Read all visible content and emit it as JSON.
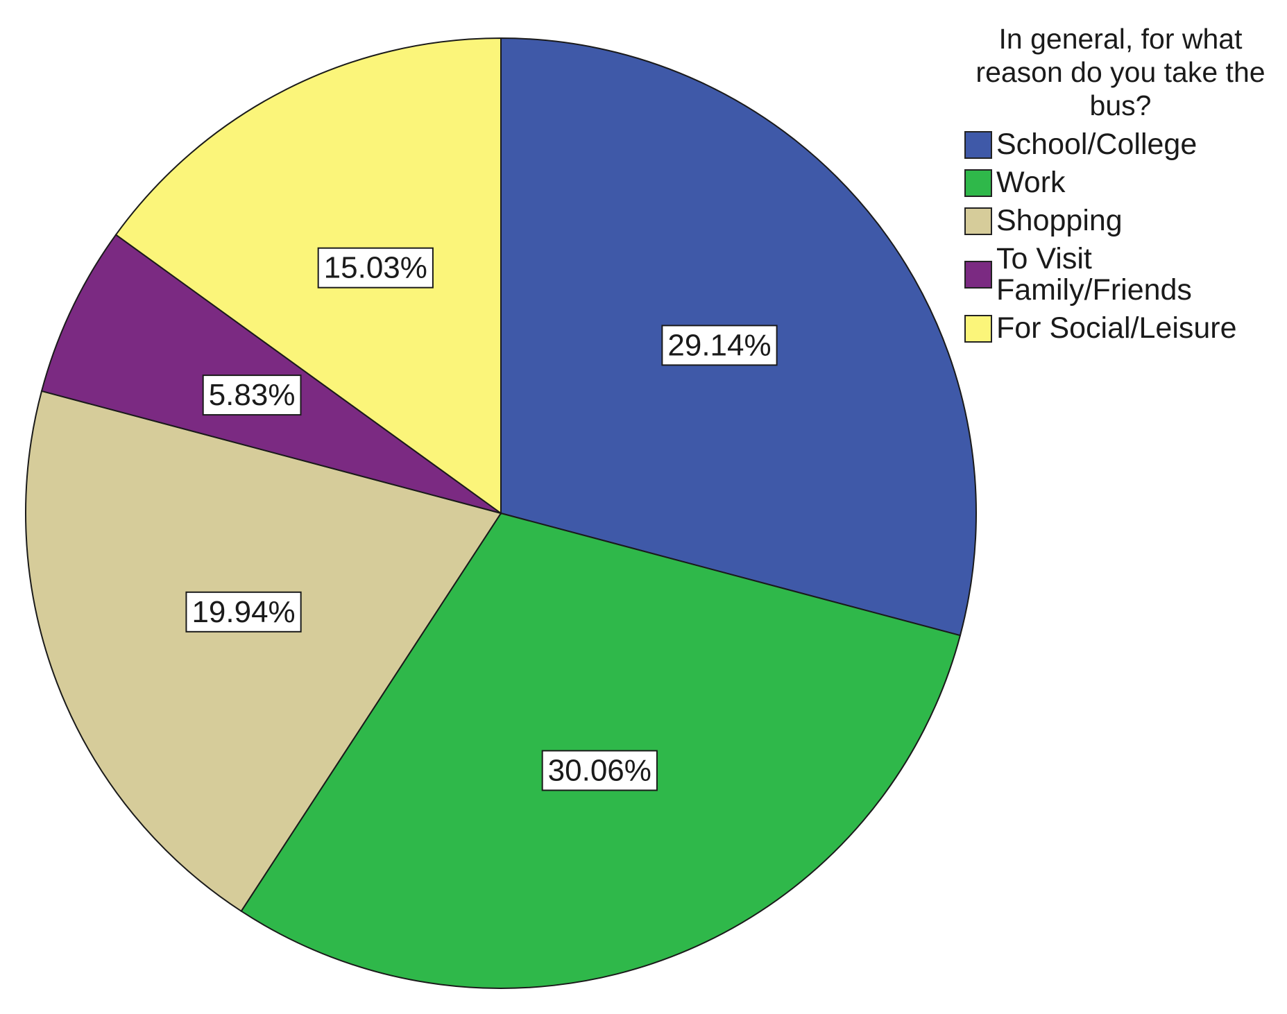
{
  "chart_data": {
    "type": "pie",
    "legend_title": "In general, for what reason do you take the bus?",
    "legend_position": "top-right",
    "slices": [
      {
        "label": "School/College",
        "value": 29.14,
        "display": "29.14%",
        "color": "#3f59a8"
      },
      {
        "label": "Work",
        "value": 30.06,
        "display": "30.06%",
        "color": "#2fb84a"
      },
      {
        "label": "Shopping",
        "value": 19.94,
        "display": "19.94%",
        "color": "#d6cc9a"
      },
      {
        "label": "To Visit Family/Friends",
        "value": 5.83,
        "display": "5.83%",
        "color": "#7b2a82"
      },
      {
        "label": "For Social/Leisure",
        "value": 15.03,
        "display": "15.03%",
        "color": "#fbf57a"
      }
    ]
  }
}
